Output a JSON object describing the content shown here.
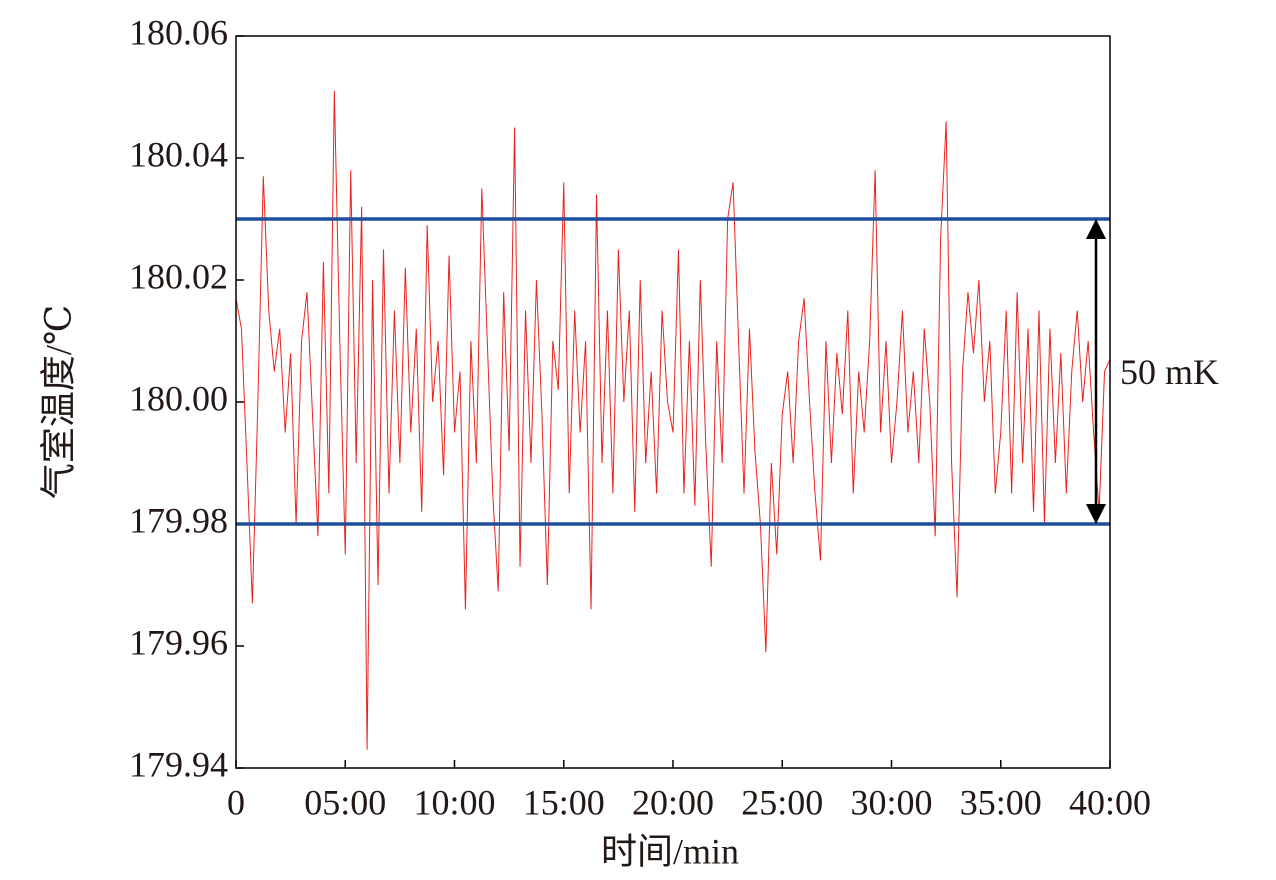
{
  "chart_data": {
    "type": "line",
    "xlabel": "时间/min",
    "ylabel": "气室温度/℃",
    "x": [
      0,
      0.25,
      0.5,
      0.75,
      1,
      1.25,
      1.5,
      1.75,
      2,
      2.25,
      2.5,
      2.75,
      3,
      3.25,
      3.5,
      3.75,
      4,
      4.25,
      4.5,
      4.75,
      5,
      5.25,
      5.5,
      5.75,
      6,
      6.25,
      6.5,
      6.75,
      7,
      7.25,
      7.5,
      7.75,
      8,
      8.25,
      8.5,
      8.75,
      9,
      9.25,
      9.5,
      9.75,
      10,
      10.25,
      10.5,
      10.75,
      11,
      11.25,
      11.5,
      11.75,
      12,
      12.25,
      12.5,
      12.75,
      13,
      13.25,
      13.5,
      13.75,
      14,
      14.25,
      14.5,
      14.75,
      15,
      15.25,
      15.5,
      15.75,
      16,
      16.25,
      16.5,
      16.75,
      17,
      17.25,
      17.5,
      17.75,
      18,
      18.25,
      18.5,
      18.75,
      19,
      19.25,
      19.5,
      19.75,
      20,
      20.25,
      20.5,
      20.75,
      21,
      21.25,
      21.5,
      21.75,
      22,
      22.25,
      22.5,
      22.75,
      23,
      23.25,
      23.5,
      23.75,
      24,
      24.25,
      24.5,
      24.75,
      25,
      25.25,
      25.5,
      25.75,
      26,
      26.25,
      26.5,
      26.75,
      27,
      27.25,
      27.5,
      27.75,
      28,
      28.25,
      28.5,
      28.75,
      29,
      29.25,
      29.5,
      29.75,
      30,
      30.25,
      30.5,
      30.75,
      31,
      31.25,
      31.5,
      31.75,
      32,
      32.25,
      32.5,
      32.75,
      33,
      33.25,
      33.5,
      33.75,
      34,
      34.25,
      34.5,
      34.75,
      35,
      35.25,
      35.5,
      35.75,
      36,
      36.25,
      36.5,
      36.75,
      37,
      37.25,
      37.5,
      37.75,
      38,
      38.25,
      38.5,
      38.75,
      39,
      39.25,
      39.5,
      39.75,
      40
    ],
    "series": [
      {
        "color": "#e8231f",
        "values": [
          180.017,
          180.012,
          179.99,
          179.967,
          180.0,
          180.037,
          180.015,
          180.005,
          180.012,
          179.995,
          180.008,
          179.98,
          180.01,
          180.018,
          179.998,
          179.978,
          180.023,
          179.985,
          180.051,
          180.01,
          179.975,
          180.038,
          179.99,
          180.032,
          179.943,
          180.02,
          179.97,
          180.025,
          179.985,
          180.015,
          179.99,
          180.022,
          179.995,
          180.012,
          179.982,
          180.029,
          180.0,
          180.01,
          179.988,
          180.024,
          179.995,
          180.005,
          179.966,
          180.01,
          179.99,
          180.035,
          180.01,
          179.985,
          179.969,
          180.018,
          179.992,
          180.045,
          179.973,
          180.015,
          179.99,
          180.02,
          179.998,
          179.97,
          180.01,
          180.002,
          180.036,
          179.985,
          180.015,
          179.995,
          180.01,
          179.966,
          180.034,
          179.99,
          180.015,
          179.985,
          180.025,
          180.0,
          180.015,
          179.982,
          180.02,
          179.99,
          180.005,
          179.985,
          180.015,
          180.0,
          179.995,
          180.025,
          179.985,
          180.01,
          179.983,
          180.02,
          179.993,
          179.973,
          180.01,
          179.99,
          180.03,
          180.036,
          180.01,
          179.985,
          180.012,
          179.992,
          179.98,
          179.959,
          179.99,
          179.975,
          179.998,
          180.005,
          179.99,
          180.01,
          180.017,
          180.0,
          179.985,
          179.974,
          180.01,
          179.99,
          180.008,
          179.998,
          180.015,
          179.985,
          180.005,
          179.995,
          180.01,
          180.038,
          179.995,
          180.01,
          179.99,
          180.0,
          180.015,
          179.995,
          180.005,
          179.99,
          180.012,
          180.0,
          179.978,
          180.027,
          180.046,
          179.99,
          179.968,
          180.005,
          180.018,
          180.008,
          180.02,
          180.0,
          180.01,
          179.985,
          179.995,
          180.015,
          179.985,
          180.018,
          179.99,
          180.012,
          179.982,
          180.015,
          179.98,
          180.012,
          179.99,
          180.008,
          179.985,
          180.005,
          180.015,
          180.0,
          180.01,
          179.995,
          179.982,
          180.005,
          180.007
        ]
      }
    ],
    "xlim": [
      0,
      40
    ],
    "xticks": [
      0,
      {
        "value": 5,
        "label": "05:00"
      },
      {
        "value": 10,
        "label": "10:00"
      },
      {
        "value": 15,
        "label": "15:00"
      },
      {
        "value": 20,
        "label": "20:00"
      },
      {
        "value": 25,
        "label": "25:00"
      },
      {
        "value": 30,
        "label": "30:00"
      },
      {
        "value": 35,
        "label": "35:00"
      },
      {
        "value": 40,
        "label": "40:00"
      }
    ],
    "ylim": [
      179.94,
      180.06
    ],
    "yticks": [
      179.94,
      179.96,
      179.98,
      {
        "value": 180,
        "label": "180.00"
      },
      180.02,
      180.04,
      180.06
    ],
    "reference_lines": {
      "color": "#1f4e9c",
      "values": [
        180.03,
        179.98
      ]
    },
    "annotation": "50 mK"
  }
}
